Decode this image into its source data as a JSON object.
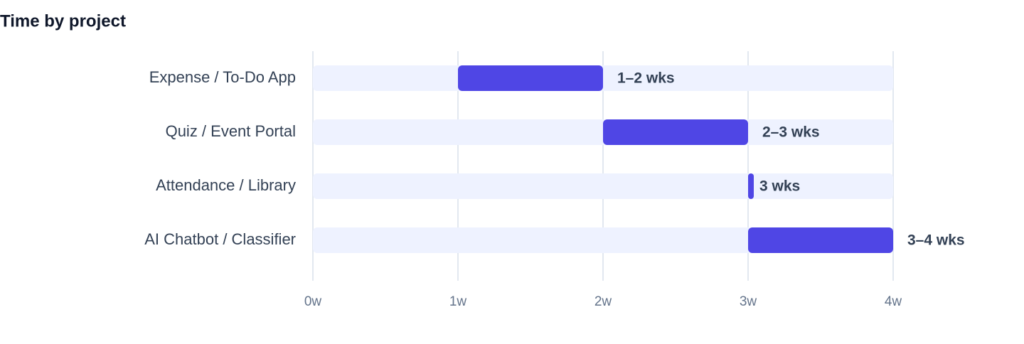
{
  "chart_data": {
    "type": "bar",
    "title": "Time by project",
    "categories": [
      "Expense / To-Do App",
      "Quiz / Event Portal",
      "Attendance / Library",
      "AI Chatbot / Classifier"
    ],
    "starts": [
      1,
      2,
      3,
      3
    ],
    "ends": [
      2,
      3,
      3,
      4
    ],
    "value_labels": [
      "1–2 wks",
      "2–3 wks",
      "3 wks",
      "3–4 wks"
    ],
    "color": "#4f46e5",
    "track_color": "#eef2ff",
    "xlim": [
      0,
      4
    ],
    "xticks": [
      {
        "value": 0,
        "label": "0w"
      },
      {
        "value": 1,
        "label": "1w"
      },
      {
        "value": 2,
        "label": "2w"
      },
      {
        "value": 3,
        "label": "3w"
      },
      {
        "value": 4,
        "label": "4w"
      }
    ],
    "grid": true
  }
}
